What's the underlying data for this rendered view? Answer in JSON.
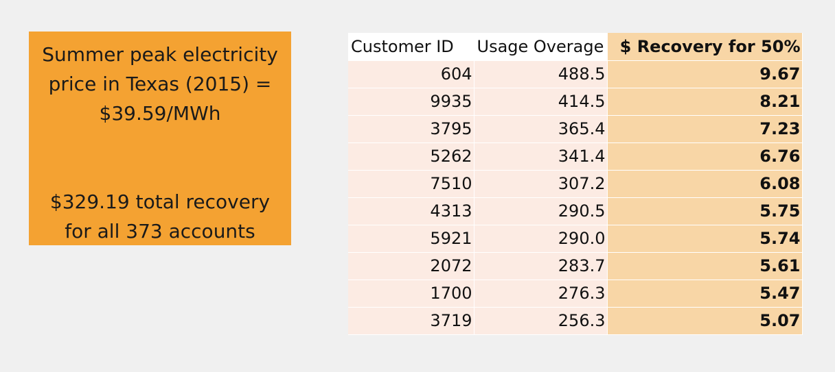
{
  "summary": {
    "line1": "Summer peak electricity",
    "line2": "price in Texas (2015) =",
    "line3": "$39.59/MWh",
    "line4": "$329.19 total recovery",
    "line5": "for all 373 accounts",
    "box_color": "#f4a232"
  },
  "table": {
    "headers": [
      "Customer ID",
      "Usage Overage",
      "$ Recovery for 50%"
    ],
    "rows": [
      [
        "604",
        "488.5",
        "9.67"
      ],
      [
        "9935",
        "414.5",
        "8.21"
      ],
      [
        "3795",
        "365.4",
        "7.23"
      ],
      [
        "5262",
        "341.4",
        "6.76"
      ],
      [
        "7510",
        "307.2",
        "6.08"
      ],
      [
        "4313",
        "290.5",
        "5.75"
      ],
      [
        "5921",
        "290.0",
        "5.74"
      ],
      [
        "2072",
        "283.7",
        "5.61"
      ],
      [
        "1700",
        "276.3",
        "5.47"
      ],
      [
        "3719",
        "256.3",
        "5.07"
      ]
    ],
    "row_color": "#fcebe3",
    "highlight_color": "#f8d6a6"
  }
}
